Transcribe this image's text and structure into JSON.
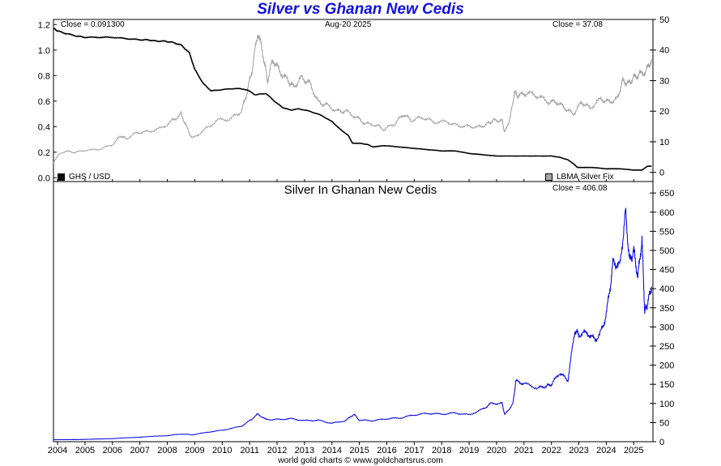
{
  "title": "Silver vs Ghanan New Cedis",
  "footer": "world gold charts © www.goldchartsrus.com",
  "top_panel": {
    "close_left": "Close = 0.091300",
    "date": "Aug-20  2025",
    "close_right": "Close = 37.08",
    "legend_left": "GHS / USD",
    "legend_right": "LBMA Silver Fix",
    "legend_left_color": "#000000",
    "legend_right_color": "#a8a8a8"
  },
  "bottom_panel": {
    "title": "Silver In Ghanan New Cedis",
    "close": "Close = 406.08",
    "line_color": "#1010e0"
  },
  "chart_data": [
    {
      "type": "line",
      "panel": "top",
      "x_ticks": [
        "2004",
        "2005",
        "2006",
        "2007",
        "2008",
        "2009",
        "2010",
        "2011",
        "2012",
        "2013",
        "2014",
        "2015",
        "2016",
        "2017",
        "2018",
        "2019",
        "2020",
        "2021",
        "2022",
        "2023",
        "2024",
        "2025"
      ],
      "xlim": [
        2003.85,
        2025.7
      ],
      "y_left": {
        "lim": [
          -0.03,
          1.24
        ],
        "ticks": [
          "0.0",
          "0.2",
          "0.4",
          "0.6",
          "0.8",
          "1.0",
          "1.2"
        ]
      },
      "y_right": {
        "lim": [
          -3,
          50
        ],
        "ticks": [
          "0",
          "10",
          "20",
          "30",
          "40",
          "50"
        ]
      },
      "series": [
        {
          "name": "GHS / USD",
          "axis": "left",
          "color": "#000000",
          "x": [
            2003.85,
            2004.0,
            2004.3,
            2004.7,
            2005.0,
            2005.5,
            2006.0,
            2006.5,
            2007.0,
            2007.3,
            2007.6,
            2007.9,
            2008.2,
            2008.5,
            2008.8,
            2009.0,
            2009.3,
            2009.6,
            2010.0,
            2010.5,
            2010.9,
            2011.2,
            2011.6,
            2011.9,
            2012.2,
            2012.5,
            2012.8,
            2013.2,
            2013.6,
            2014.0,
            2014.3,
            2014.6,
            2014.75,
            2015.0,
            2015.3,
            2015.5,
            2015.8,
            2016.0,
            2016.5,
            2017.0,
            2017.5,
            2018.0,
            2018.5,
            2019.0,
            2019.5,
            2020.0,
            2020.5,
            2021.0,
            2021.5,
            2022.0,
            2022.3,
            2022.6,
            2022.8,
            2022.95,
            2023.2,
            2023.5,
            2024.0,
            2024.5,
            2025.0,
            2025.3,
            2025.5,
            2025.65
          ],
          "y": [
            1.17,
            1.15,
            1.13,
            1.11,
            1.1,
            1.1,
            1.1,
            1.09,
            1.08,
            1.08,
            1.07,
            1.07,
            1.06,
            1.04,
            0.98,
            0.85,
            0.74,
            0.68,
            0.69,
            0.7,
            0.69,
            0.65,
            0.66,
            0.6,
            0.55,
            0.53,
            0.54,
            0.52,
            0.49,
            0.44,
            0.38,
            0.33,
            0.27,
            0.27,
            0.26,
            0.24,
            0.25,
            0.25,
            0.24,
            0.23,
            0.22,
            0.21,
            0.21,
            0.19,
            0.18,
            0.17,
            0.17,
            0.17,
            0.17,
            0.17,
            0.16,
            0.14,
            0.11,
            0.08,
            0.08,
            0.08,
            0.07,
            0.07,
            0.06,
            0.06,
            0.09,
            0.09
          ]
        },
        {
          "name": "LBMA Silver Fix",
          "axis": "right",
          "color": "#a8a8a8",
          "x": [
            2003.85,
            2004.0,
            2004.3,
            2004.6,
            2005.0,
            2005.5,
            2006.0,
            2006.3,
            2006.5,
            2006.9,
            2007.3,
            2007.8,
            2008.2,
            2008.5,
            2008.7,
            2008.9,
            2009.3,
            2009.8,
            2010.3,
            2010.7,
            2010.9,
            2011.1,
            2011.3,
            2011.5,
            2011.65,
            2011.85,
            2012.1,
            2012.4,
            2012.6,
            2012.9,
            2013.2,
            2013.5,
            2013.8,
            2014.2,
            2014.5,
            2014.9,
            2015.2,
            2015.6,
            2015.9,
            2016.3,
            2016.6,
            2016.9,
            2017.3,
            2017.7,
            2018.2,
            2018.6,
            2019.0,
            2019.4,
            2019.7,
            2019.9,
            2020.2,
            2020.3,
            2020.5,
            2020.65,
            2020.8,
            2021.1,
            2021.5,
            2021.9,
            2022.2,
            2022.5,
            2022.8,
            2023.1,
            2023.4,
            2023.8,
            2024.1,
            2024.4,
            2024.6,
            2024.8,
            2025.0,
            2025.2,
            2025.45,
            2025.65
          ],
          "y": [
            3,
            5.5,
            7,
            6.5,
            7.2,
            7.5,
            9,
            12,
            11,
            13,
            13.3,
            14.5,
            17,
            19,
            15,
            11,
            13.5,
            17,
            17.5,
            20,
            26,
            34,
            46,
            38,
            30,
            37,
            33,
            30,
            28,
            31,
            29,
            23,
            22,
            20,
            20,
            18,
            16,
            15.5,
            14,
            16,
            19,
            17,
            18,
            16.5,
            16.5,
            15.2,
            15,
            14.8,
            16,
            17,
            17,
            13,
            18,
            26,
            25,
            26,
            25,
            23,
            23,
            21,
            19,
            23,
            21,
            24,
            23,
            24,
            30,
            29,
            31,
            32,
            33,
            37
          ]
        },
        {
          "name": "Silver In Ghanan New Cedis",
          "panel": "bottom",
          "color": "#1010e0",
          "ylim": [
            0,
            680
          ],
          "y_ticks": [
            "0",
            "50",
            "100",
            "150",
            "200",
            "250",
            "300",
            "350",
            "400",
            "450",
            "500",
            "550",
            "600",
            "650"
          ],
          "x": [
            2003.85,
            2005.0,
            2006.0,
            2007.0,
            2008.0,
            2008.5,
            2008.9,
            2009.5,
            2010.0,
            2010.7,
            2011.0,
            2011.3,
            2011.6,
            2012.0,
            2012.5,
            2013.0,
            2013.5,
            2014.0,
            2014.5,
            2014.8,
            2015.0,
            2015.5,
            2016.0,
            2016.5,
            2017.0,
            2017.5,
            2018.0,
            2018.5,
            2019.0,
            2019.5,
            2019.8,
            2020.2,
            2020.3,
            2020.6,
            2020.7,
            2021.0,
            2021.5,
            2021.8,
            2022.0,
            2022.3,
            2022.6,
            2022.85,
            2023.0,
            2023.3,
            2023.6,
            2023.9,
            2024.1,
            2024.25,
            2024.5,
            2024.7,
            2024.85,
            2025.0,
            2025.15,
            2025.3,
            2025.4,
            2025.5,
            2025.65
          ],
          "y": [
            5,
            6,
            8,
            12,
            16,
            20,
            18,
            25,
            30,
            40,
            55,
            72,
            58,
            58,
            60,
            55,
            56,
            48,
            55,
            72,
            56,
            55,
            60,
            62,
            70,
            74,
            72,
            75,
            70,
            85,
            100,
            100,
            70,
            100,
            158,
            152,
            140,
            145,
            150,
            180,
            160,
            290,
            280,
            285,
            265,
            300,
            380,
            470,
            460,
            600,
            470,
            500,
            430,
            530,
            340,
            360,
            406
          ]
        }
      ]
    }
  ]
}
